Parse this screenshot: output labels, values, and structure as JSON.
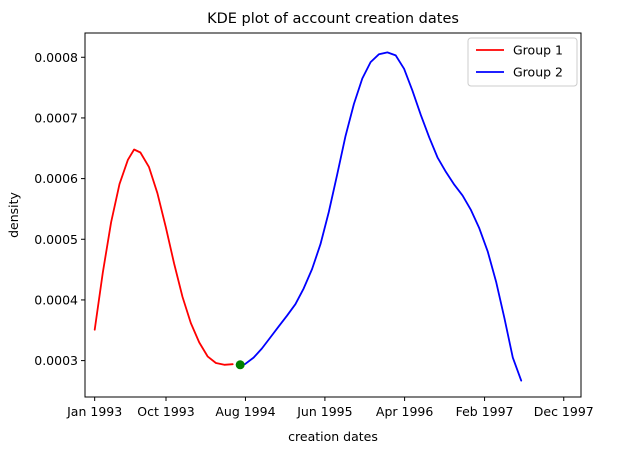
{
  "chart_data": {
    "type": "line",
    "title": "KDE plot of account creation dates",
    "xlabel": "creation dates",
    "ylabel": "density",
    "x_ticks": [
      "Jan 1993",
      "Oct 1993",
      "Aug 1994",
      "Jun 1995",
      "Apr 1996",
      "Feb 1997",
      "Dec 1997"
    ],
    "xlim": [
      "1992-11-25",
      "1998-02-05"
    ],
    "ylim": [
      0.00024,
      0.00084
    ],
    "y_ticks": [
      0.0003,
      0.0004,
      0.0005,
      0.0006,
      0.0007,
      0.0008
    ],
    "y_tick_labels": [
      "0.0003",
      "0.0004",
      "0.0005",
      "0.0006",
      "0.0007",
      "0.0008"
    ],
    "legend_position": "upper right",
    "grid": false,
    "series": [
      {
        "name": "Group 1",
        "color": "#ff0000",
        "points": [
          [
            "1993-01-01",
            0.000351
          ],
          [
            "1993-02-01",
            0.000445
          ],
          [
            "1993-03-05",
            0.000528
          ],
          [
            "1993-04-06",
            0.000591
          ],
          [
            "1993-05-08",
            0.000631
          ],
          [
            "1993-06-01",
            0.000648
          ],
          [
            "1993-06-25",
            0.000643
          ],
          [
            "1993-07-28",
            0.000619
          ],
          [
            "1993-08-29",
            0.000576
          ],
          [
            "1993-09-30",
            0.00052
          ],
          [
            "1993-11-01",
            0.00046
          ],
          [
            "1993-12-03",
            0.000405
          ],
          [
            "1994-01-04",
            0.000362
          ],
          [
            "1994-02-05",
            0.00033
          ],
          [
            "1994-03-09",
            0.000307
          ],
          [
            "1994-04-10",
            0.000296
          ],
          [
            "1994-05-12",
            0.000293
          ],
          [
            "1994-06-13",
            0.000294
          ]
        ]
      },
      {
        "name": "Group 2",
        "color": "#0000ff",
        "points": [
          [
            "1994-07-30",
            0.000294
          ],
          [
            "1994-09-01",
            0.000305
          ],
          [
            "1994-10-03",
            0.00032
          ],
          [
            "1994-11-04",
            0.000338
          ],
          [
            "1994-12-06",
            0.000356
          ],
          [
            "1995-01-07",
            0.000374
          ],
          [
            "1995-02-08",
            0.000393
          ],
          [
            "1995-03-12",
            0.000419
          ],
          [
            "1995-04-13",
            0.000451
          ],
          [
            "1995-05-15",
            0.000492
          ],
          [
            "1995-06-16",
            0.000545
          ],
          [
            "1995-07-18",
            0.000607
          ],
          [
            "1995-08-19",
            0.00067
          ],
          [
            "1995-09-20",
            0.000723
          ],
          [
            "1995-10-22",
            0.000765
          ],
          [
            "1995-11-23",
            0.000792
          ],
          [
            "1995-12-25",
            0.000805
          ],
          [
            "1996-01-26",
            0.000808
          ],
          [
            "1996-02-27",
            0.000803
          ],
          [
            "1996-03-30",
            0.000781
          ],
          [
            "1996-05-01",
            0.000745
          ],
          [
            "1996-06-02",
            0.000705
          ],
          [
            "1996-07-04",
            0.000668
          ],
          [
            "1996-08-05",
            0.000635
          ],
          [
            "1996-09-06",
            0.000611
          ],
          [
            "1996-10-08",
            0.00059
          ],
          [
            "1996-11-09",
            0.000572
          ],
          [
            "1996-12-11",
            0.000548
          ],
          [
            "1997-01-12",
            0.000518
          ],
          [
            "1997-02-13",
            0.00048
          ],
          [
            "1997-03-17",
            0.00043
          ],
          [
            "1997-04-18",
            0.00037
          ],
          [
            "1997-05-20",
            0.000305
          ],
          [
            "1997-06-21",
            0.000267
          ]
        ]
      }
    ],
    "markers": [
      {
        "x": "1994-07-12",
        "y": 0.000293,
        "color": "#008000"
      }
    ]
  }
}
